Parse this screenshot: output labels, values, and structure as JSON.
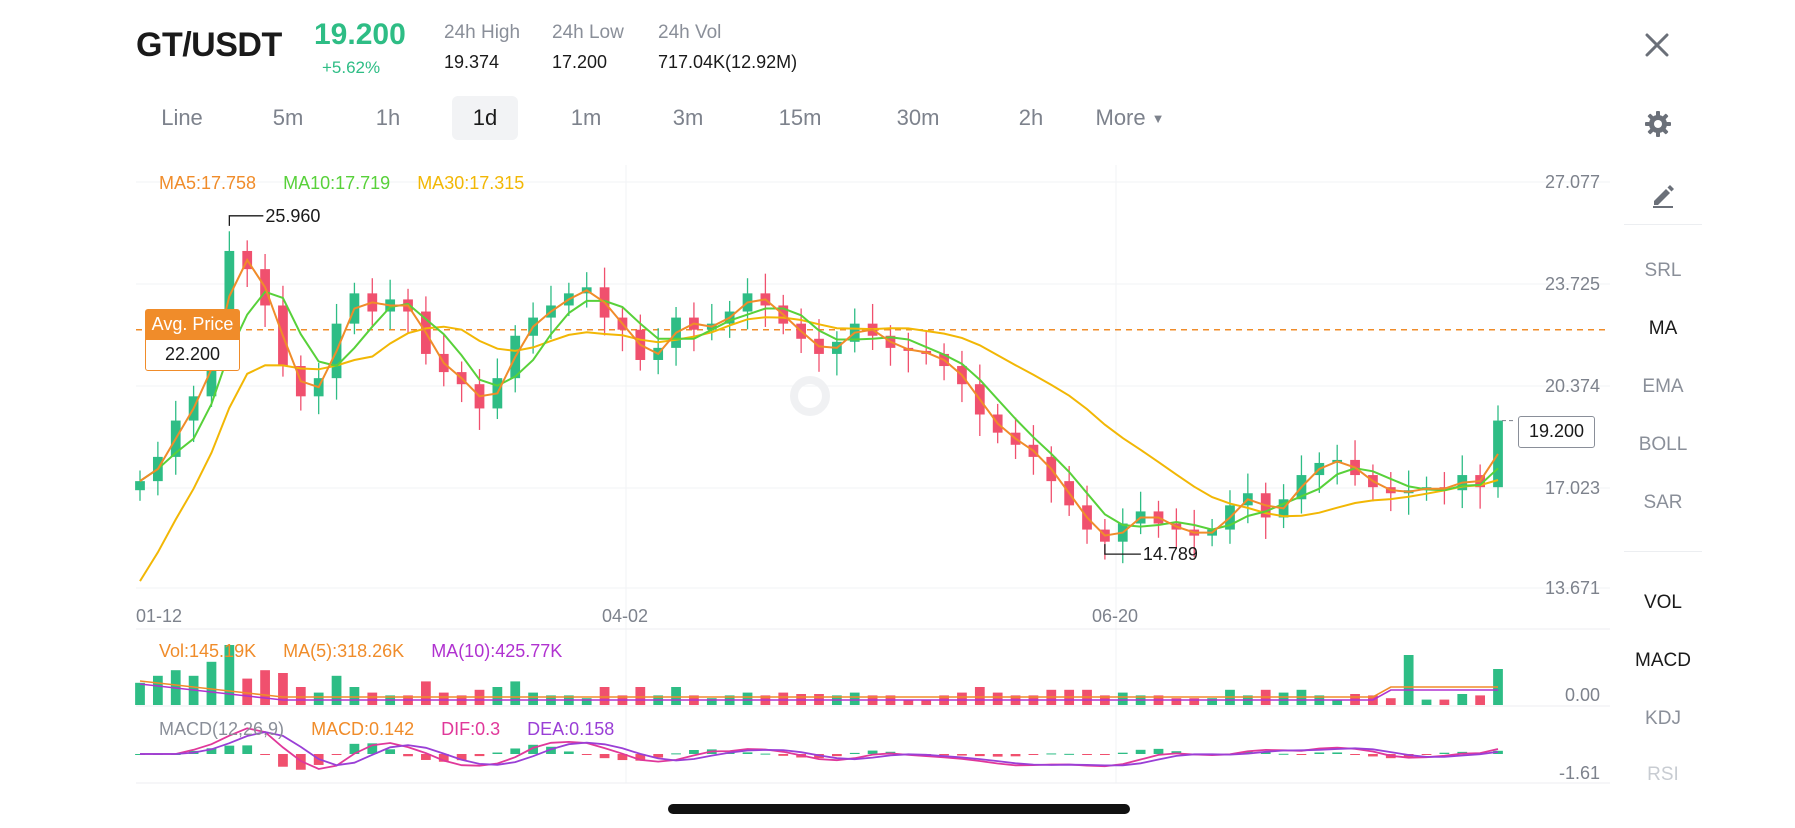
{
  "header": {
    "pair": "GT/USDT",
    "price": "19.200",
    "change": "+5.62%",
    "stats": [
      {
        "label": "24h High",
        "value": "19.374"
      },
      {
        "label": "24h Low",
        "value": "17.200"
      },
      {
        "label": "24h Vol",
        "value": "717.04K(12.92M)"
      }
    ]
  },
  "timeframes": [
    {
      "label": "Line",
      "active": false
    },
    {
      "label": "5m",
      "active": false
    },
    {
      "label": "1h",
      "active": false
    },
    {
      "label": "1d",
      "active": true
    },
    {
      "label": "1m",
      "active": false
    },
    {
      "label": "3m",
      "active": false
    },
    {
      "label": "15m",
      "active": false
    },
    {
      "label": "30m",
      "active": false
    },
    {
      "label": "2h",
      "active": false
    },
    {
      "label": "More",
      "active": false
    }
  ],
  "main_indicators": {
    "ma5": "MA5:17.758",
    "ma10": "MA10:17.719",
    "ma30": "MA30:17.315"
  },
  "annotations": {
    "high_label": "25.960",
    "low_label": "14.789",
    "avg_title": "Avg. Price",
    "avg_value": "22.200",
    "current_price": "19.200"
  },
  "volume_legend": {
    "vol": "Vol:145.19K",
    "ma5": "MA(5):318.26K",
    "ma10": "MA(10):425.77K"
  },
  "macd_legend": {
    "name": "MACD(12,26,9)",
    "macd": "MACD:0.142",
    "dif": "DIF:0.3",
    "dea": "DEA:0.158"
  },
  "sidebar": {
    "main": [
      {
        "label": "SRL",
        "active": false
      },
      {
        "label": "MA",
        "active": true
      },
      {
        "label": "EMA",
        "active": false
      },
      {
        "label": "BOLL",
        "active": false
      },
      {
        "label": "SAR",
        "active": false
      }
    ],
    "sub": [
      {
        "label": "VOL",
        "active": true
      },
      {
        "label": "MACD",
        "active": true
      },
      {
        "label": "KDJ",
        "active": false
      },
      {
        "label": "RSI",
        "active": false
      }
    ]
  },
  "colors": {
    "up": "#2ebd85",
    "down": "#f0506e",
    "ma5": "#f08c2a",
    "ma10": "#58d13a",
    "ma30": "#f2b705",
    "vol_ma10": "#b032d0",
    "dif": "#e0389a",
    "dea": "#9a3fd6",
    "avg_line": "#f08c2a"
  },
  "chart_data": {
    "type": "candlestick",
    "y_ticks": [
      "27.077",
      "23.725",
      "20.374",
      "17.023",
      "13.671"
    ],
    "ylim": [
      13.671,
      27.077
    ],
    "x_ticks": [
      "01-12",
      "04-02",
      "06-20"
    ],
    "avg_price": 22.2,
    "period_high": 25.96,
    "period_low": 14.789,
    "last_close": 19.2,
    "close_series": [
      17.2,
      18.0,
      19.2,
      20.0,
      21.8,
      24.8,
      24.2,
      23.0,
      21.0,
      20.0,
      20.6,
      22.4,
      23.4,
      22.8,
      23.2,
      22.8,
      21.4,
      20.8,
      20.4,
      19.6,
      20.6,
      22.0,
      22.6,
      23.0,
      23.4,
      23.6,
      22.6,
      22.2,
      21.2,
      21.6,
      22.6,
      22.2,
      22.4,
      22.8,
      23.4,
      23.0,
      22.4,
      21.9,
      21.4,
      21.8,
      22.4,
      22.0,
      21.6,
      21.5,
      21.4,
      21.0,
      20.4,
      19.4,
      18.8,
      18.4,
      18.0,
      17.2,
      16.4,
      15.6,
      15.2,
      15.8,
      16.2,
      15.8,
      15.6,
      15.4,
      15.6,
      16.4,
      16.8,
      16.0,
      16.6,
      17.4,
      17.8,
      17.9,
      17.4,
      17.0,
      16.8,
      16.9,
      17.0,
      16.9,
      17.4,
      17.0,
      19.2
    ],
    "volume_axis": [
      "0.00"
    ],
    "macd_axis": [
      "-1.61"
    ]
  }
}
